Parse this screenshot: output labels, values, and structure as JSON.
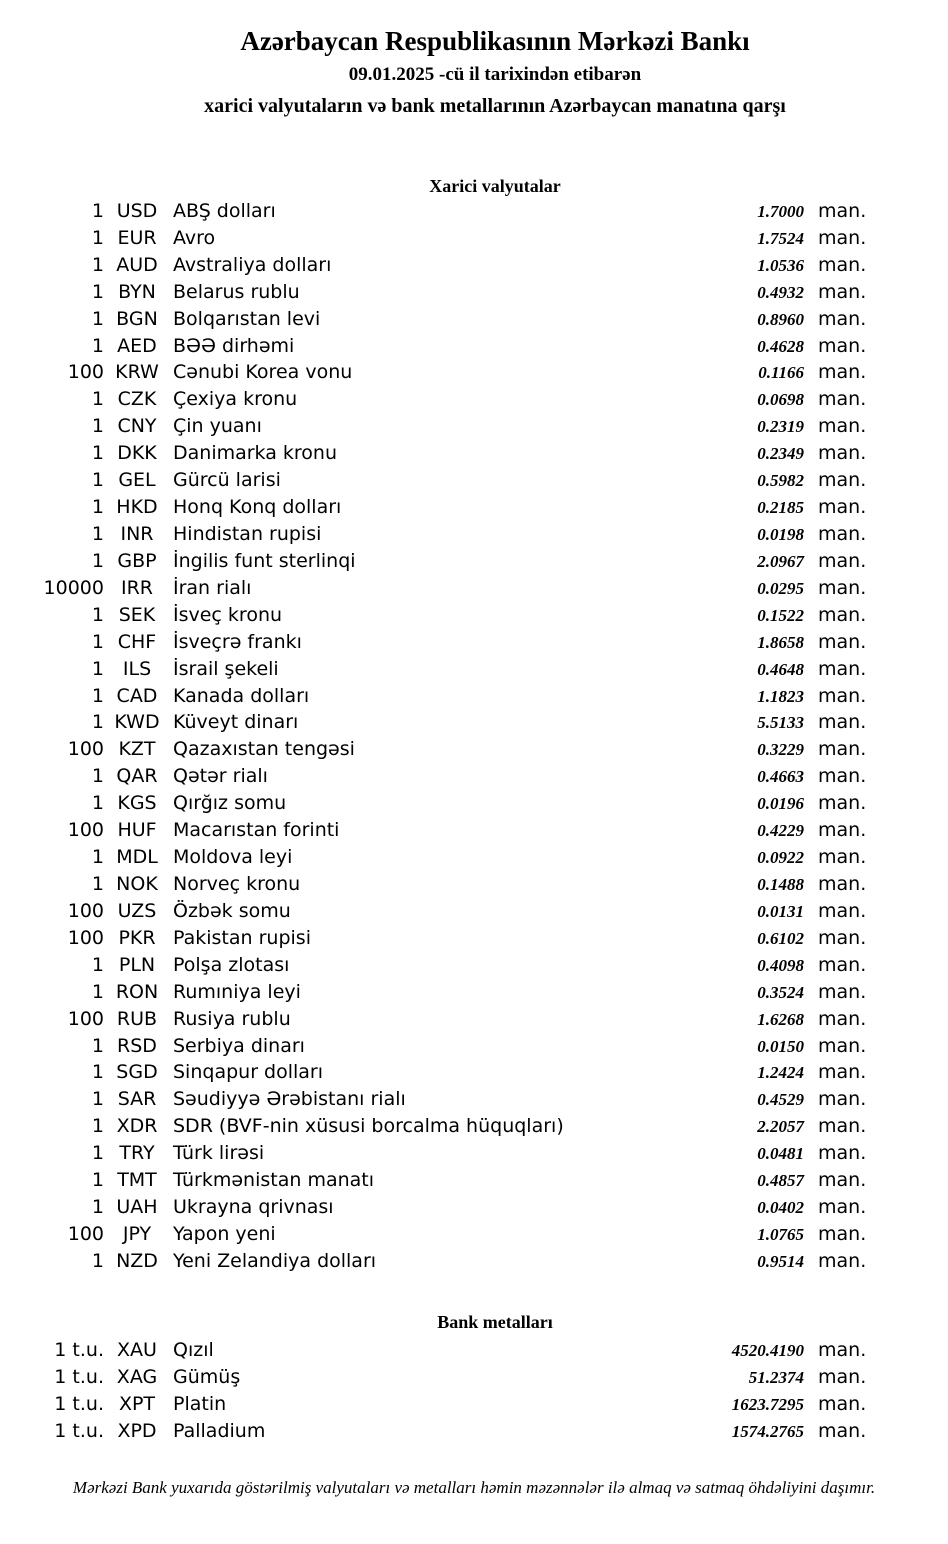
{
  "page": {
    "title": "Azərbaycan Respublikasının Mərkəzi Bankı",
    "effective_date_line": "09.01.2025 -cü il tarixindən etibarən",
    "subtitle": "xarici valyutaların və bank metallarının Azərbaycan manatına qarşı",
    "footer_note": "Mərkəzi Bank yuxarıda göstərilmiş valyutaları və metalları həmin məzənnələr ilə almaq və satmaq öhdəliyini daşımır."
  },
  "shared": {
    "unit_label": "man."
  },
  "colors": {
    "text": "#000000",
    "background": "#ffffff"
  },
  "currencies": {
    "section_title": "Xarici valyutalar",
    "rows": [
      {
        "qty": "1",
        "code": "USD",
        "name": "ABŞ dolları",
        "rate": "1.7000"
      },
      {
        "qty": "1",
        "code": "EUR",
        "name": "Avro",
        "rate": "1.7524"
      },
      {
        "qty": "1",
        "code": "AUD",
        "name": "Avstraliya dolları",
        "rate": "1.0536"
      },
      {
        "qty": "1",
        "code": "BYN",
        "name": "Belarus rublu",
        "rate": "0.4932"
      },
      {
        "qty": "1",
        "code": "BGN",
        "name": "Bolqarıstan levi",
        "rate": "0.8960"
      },
      {
        "qty": "1",
        "code": "AED",
        "name": "BƏƏ dirhəmi",
        "rate": "0.4628"
      },
      {
        "qty": "100",
        "code": "KRW",
        "name": "Cənubi Korea vonu",
        "rate": "0.1166"
      },
      {
        "qty": "1",
        "code": "CZK",
        "name": "Çexiya kronu",
        "rate": "0.0698"
      },
      {
        "qty": "1",
        "code": "CNY",
        "name": "Çin yuanı",
        "rate": "0.2319"
      },
      {
        "qty": "1",
        "code": "DKK",
        "name": "Danimarka kronu",
        "rate": "0.2349"
      },
      {
        "qty": "1",
        "code": "GEL",
        "name": "Gürcü larisi",
        "rate": "0.5982"
      },
      {
        "qty": "1",
        "code": "HKD",
        "name": "Honq Konq dolları",
        "rate": "0.2185"
      },
      {
        "qty": "1",
        "code": "INR",
        "name": "Hindistan rupisi",
        "rate": "0.0198"
      },
      {
        "qty": "1",
        "code": "GBP",
        "name": "İngilis funt sterlinqi",
        "rate": "2.0967"
      },
      {
        "qty": "10000",
        "code": "IRR",
        "name": "İran rialı",
        "rate": "0.0295"
      },
      {
        "qty": "1",
        "code": "SEK",
        "name": "İsveç kronu",
        "rate": "0.1522"
      },
      {
        "qty": "1",
        "code": "CHF",
        "name": "İsveçrə frankı",
        "rate": "1.8658"
      },
      {
        "qty": "1",
        "code": "ILS",
        "name": "İsrail şekeli",
        "rate": "0.4648"
      },
      {
        "qty": "1",
        "code": "CAD",
        "name": "Kanada dolları",
        "rate": "1.1823"
      },
      {
        "qty": "1",
        "code": "KWD",
        "name": "Küveyt dinarı",
        "rate": "5.5133"
      },
      {
        "qty": "100",
        "code": "KZT",
        "name": "Qazaxıstan tengəsi",
        "rate": "0.3229"
      },
      {
        "qty": "1",
        "code": "QAR",
        "name": "Qətər rialı",
        "rate": "0.4663"
      },
      {
        "qty": "1",
        "code": "KGS",
        "name": "Qırğız somu",
        "rate": "0.0196"
      },
      {
        "qty": "100",
        "code": "HUF",
        "name": "Macarıstan forinti",
        "rate": "0.4229"
      },
      {
        "qty": "1",
        "code": "MDL",
        "name": "Moldova leyi",
        "rate": "0.0922"
      },
      {
        "qty": "1",
        "code": "NOK",
        "name": "Norveç kronu",
        "rate": "0.1488"
      },
      {
        "qty": "100",
        "code": "UZS",
        "name": "Özbək somu",
        "rate": "0.0131"
      },
      {
        "qty": "100",
        "code": "PKR",
        "name": "Pakistan rupisi",
        "rate": "0.6102"
      },
      {
        "qty": "1",
        "code": "PLN",
        "name": "Polşa zlotası",
        "rate": "0.4098"
      },
      {
        "qty": "1",
        "code": "RON",
        "name": "Rumıniya leyi",
        "rate": "0.3524"
      },
      {
        "qty": "100",
        "code": "RUB",
        "name": "Rusiya rublu",
        "rate": "1.6268"
      },
      {
        "qty": "1",
        "code": "RSD",
        "name": "Serbiya dinarı",
        "rate": "0.0150"
      },
      {
        "qty": "1",
        "code": "SGD",
        "name": "Sinqapur dolları",
        "rate": "1.2424"
      },
      {
        "qty": "1",
        "code": "SAR",
        "name": "Səudiyyə Ərəbistanı rialı",
        "rate": "0.4529"
      },
      {
        "qty": "1",
        "code": "XDR",
        "name": "SDR (BVF-nin xüsusi borcalma hüquqları)",
        "rate": "2.2057"
      },
      {
        "qty": "1",
        "code": "TRY",
        "name": "Türk lirəsi",
        "rate": "0.0481"
      },
      {
        "qty": "1",
        "code": "TMT",
        "name": "Türkmənistan manatı",
        "rate": "0.4857"
      },
      {
        "qty": "1",
        "code": "UAH",
        "name": "Ukrayna qrivnası",
        "rate": "0.0402"
      },
      {
        "qty": "100",
        "code": "JPY",
        "name": "Yapon yeni",
        "rate": "1.0765"
      },
      {
        "qty": "1",
        "code": "NZD",
        "name": "Yeni Zelandiya dolları",
        "rate": "0.9514"
      }
    ]
  },
  "metals": {
    "section_title": "Bank metalları",
    "rows": [
      {
        "qty": "1 t.u.",
        "code": "XAU",
        "name": "Qızıl",
        "rate": "4520.4190"
      },
      {
        "qty": "1 t.u.",
        "code": "XAG",
        "name": "Gümüş",
        "rate": "51.2374"
      },
      {
        "qty": "1 t.u.",
        "code": "XPT",
        "name": "Platin",
        "rate": "1623.7295"
      },
      {
        "qty": "1 t.u.",
        "code": "XPD",
        "name": "Palladium",
        "rate": "1574.2765"
      }
    ]
  }
}
